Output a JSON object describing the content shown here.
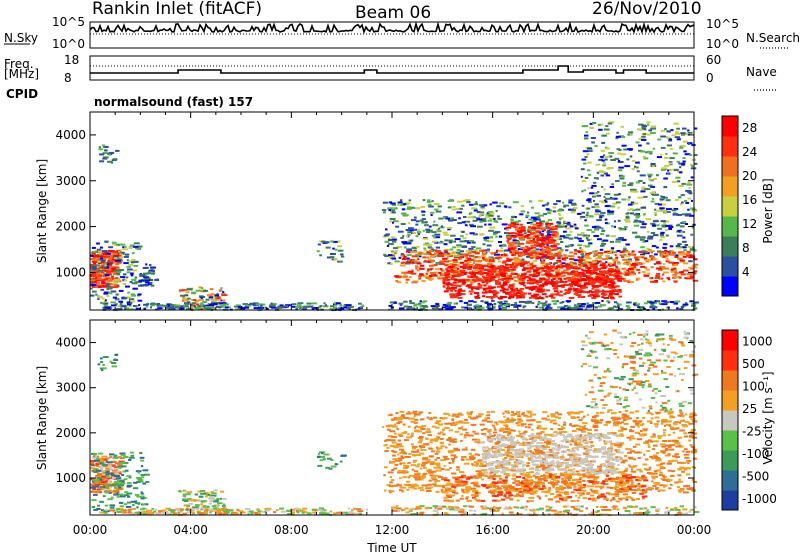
{
  "header": {
    "station": "Rankin Inlet (fitACF)",
    "beam": "Beam 06",
    "date": "26/Nov/2010"
  },
  "panels": {
    "nsky_label": "N.Sky",
    "nsky_ticks": [
      "10^5",
      "10^0"
    ],
    "nsky_right_ticks": [
      "10^5",
      "10^0"
    ],
    "nsearch_label": "N.Search",
    "freq_label": "Freq.",
    "freq_unit": "[MHz]",
    "freq_ticks": [
      "18",
      "8"
    ],
    "nave_label": "Nave",
    "nave_ticks": [
      "60",
      "0"
    ],
    "cpid_label": "CPID",
    "cpid_text": "normalsound (fast) 157"
  },
  "colors": {
    "power_scale": [
      "#0000ff",
      "#2c4fa0",
      "#3a7f5a",
      "#55b848",
      "#c8d040",
      "#f2a020",
      "#f07020",
      "#ff3010",
      "#ff0000"
    ],
    "velocity_scale": [
      "#1c3ea0",
      "#2c6e96",
      "#3a9b5a",
      "#5ac048",
      "#c8c8c0",
      "#f2a020",
      "#f07820",
      "#ff3010",
      "#ff0000"
    ]
  },
  "chart_data": [
    {
      "type": "heatmap",
      "name": "power",
      "xlabel": "",
      "ylabel": "Slant Range [km]",
      "x_ticks": [
        "00:00",
        "04:00",
        "08:00",
        "12:00",
        "16:00",
        "20:00",
        "00:00"
      ],
      "xlim_hours": [
        0,
        24
      ],
      "y_ticks": [
        1000,
        2000,
        3000,
        4000
      ],
      "ylim": [
        180,
        4500
      ],
      "colorbar_label": "Power [dB]",
      "colorbar_ticks": [
        4,
        8,
        12,
        16,
        20,
        24,
        28
      ],
      "colorbar_range": [
        0,
        30
      ]
    },
    {
      "type": "heatmap",
      "name": "velocity",
      "xlabel": "Time UT",
      "ylabel": "Slant Range [km]",
      "x_ticks": [
        "00:00",
        "04:00",
        "08:00",
        "12:00",
        "16:00",
        "20:00",
        "00:00"
      ],
      "xlim_hours": [
        0,
        24
      ],
      "y_ticks": [
        1000,
        2000,
        3000,
        4000
      ],
      "ylim": [
        180,
        4500
      ],
      "colorbar_label": "Velocity [m s⁻¹]",
      "colorbar_ticks": [
        1000,
        500,
        100,
        25,
        -25,
        -100,
        -500,
        -1000
      ]
    }
  ]
}
